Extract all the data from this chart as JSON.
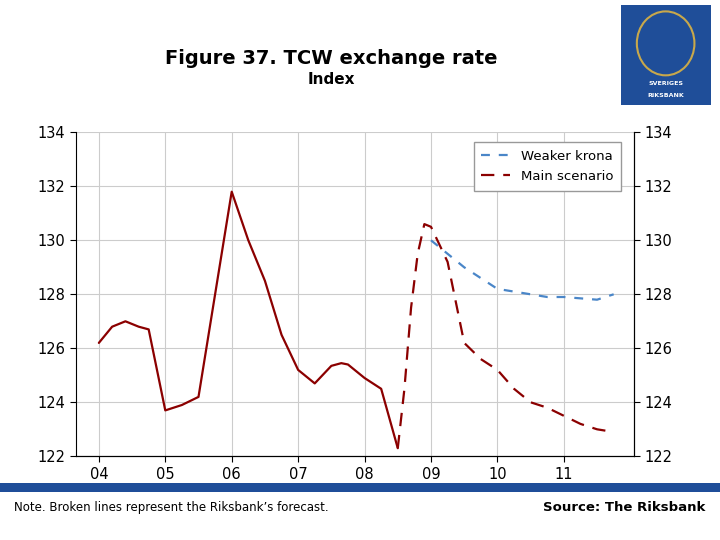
{
  "title": "Figure 37. TCW exchange rate",
  "subtitle": "Index",
  "note": "Note. Broken lines represent the Riksbank’s forecast.",
  "source": "Source: The Riksbank",
  "ylim": [
    122,
    134
  ],
  "yticks": [
    122,
    124,
    126,
    128,
    130,
    132,
    134
  ],
  "xticks": [
    4,
    5,
    6,
    7,
    8,
    9,
    10,
    11
  ],
  "xticklabels": [
    "04",
    "05",
    "06",
    "07",
    "08",
    "09",
    "10",
    "11"
  ],
  "solid_x": [
    4.0,
    4.2,
    4.4,
    4.6,
    4.75,
    5.0,
    5.25,
    5.5,
    5.75,
    6.0,
    6.25,
    6.5,
    6.75,
    7.0,
    7.25,
    7.5,
    7.65,
    7.75,
    8.0,
    8.25,
    8.5
  ],
  "solid_y": [
    126.2,
    126.8,
    127.0,
    126.8,
    126.7,
    123.7,
    123.9,
    124.2,
    128.0,
    131.8,
    130.0,
    128.5,
    126.5,
    125.2,
    124.7,
    125.35,
    125.45,
    125.4,
    124.9,
    124.5,
    122.3
  ],
  "main_x": [
    8.5,
    8.6,
    8.7,
    8.8,
    8.9,
    9.0,
    9.25,
    9.5,
    9.75,
    10.0,
    10.25,
    10.5,
    10.75,
    11.0,
    11.25,
    11.5,
    11.75
  ],
  "main_y": [
    122.3,
    124.5,
    127.5,
    129.5,
    130.6,
    130.5,
    129.2,
    126.2,
    125.6,
    125.2,
    124.5,
    124.0,
    123.8,
    123.5,
    123.2,
    123.0,
    122.9
  ],
  "weaker_x": [
    9.0,
    9.25,
    9.5,
    9.75,
    10.0,
    10.25,
    10.5,
    10.75,
    11.0,
    11.25,
    11.5,
    11.75
  ],
  "weaker_y": [
    130.0,
    129.5,
    129.0,
    128.6,
    128.2,
    128.1,
    128.0,
    127.9,
    127.9,
    127.85,
    127.8,
    128.0
  ],
  "solid_color": "#8B0000",
  "main_color": "#8B0000",
  "weaker_color": "#4A86C8",
  "footer_bar_color": "#1F4E99",
  "grid_color": "#CCCCCC",
  "background_color": "#FFFFFF",
  "xlim_left": 3.65,
  "xlim_right": 12.05
}
